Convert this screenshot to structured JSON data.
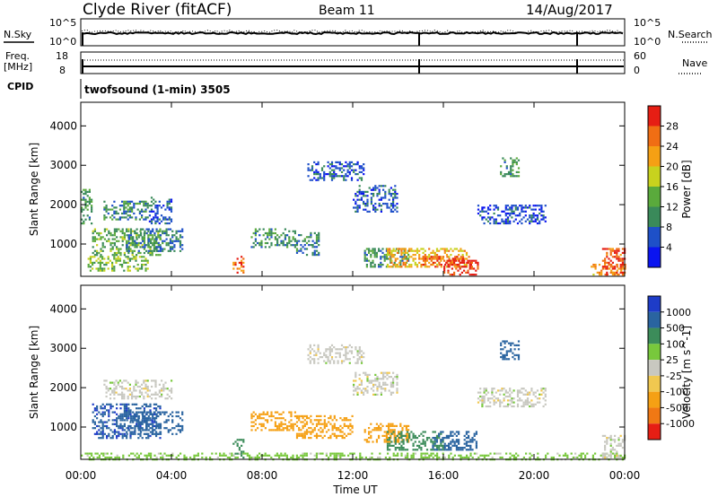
{
  "header": {
    "station": "Clyde River (fitACF)",
    "beam": "Beam 11",
    "date": "14/Aug/2017"
  },
  "top_panels": {
    "nsky_label": "N.Sky",
    "nsearch_label": "N.Search",
    "freq_label_1": "Freq.",
    "freq_label_2": "[MHz]",
    "nave_label": "Nave",
    "cpid_label": "CPID",
    "cpid_value": "twofsound (1-min) 3505",
    "noise_ticks_left": [
      "10^5",
      "10^0"
    ],
    "noise_ticks_right": [
      "10^5",
      "10^0"
    ],
    "freq_ticks_left": [
      "18",
      "8"
    ],
    "nave_ticks_right": [
      "60",
      "0"
    ]
  },
  "chart_data": [
    {
      "type": "heatmap",
      "panel": "power",
      "xlabel": "",
      "ylabel": "Slant Range [km]",
      "xlim": [
        0,
        24
      ],
      "ylim": [
        180,
        4600
      ],
      "x_ticks": [
        0,
        4,
        8,
        12,
        16,
        20,
        24
      ],
      "y_ticks": [
        1000,
        2000,
        3000,
        4000
      ],
      "colorbar": {
        "label": "Power [dB]",
        "ticks": [
          "4",
          "8",
          "12",
          "16",
          "20",
          "24",
          "28"
        ],
        "range": [
          0,
          30
        ],
        "colors": [
          "#0a14f0",
          "#1e50c8",
          "#3a8a5a",
          "#5aaa3c",
          "#c8d21e",
          "#f5a014",
          "#f06e14",
          "#e61e14"
        ]
      },
      "regions": [
        {
          "t": [
            0.0,
            0.5
          ],
          "r": [
            1500,
            2400
          ],
          "v": 10
        },
        {
          "t": [
            0.5,
            3.5
          ],
          "r": [
            700,
            1400
          ],
          "v": 12
        },
        {
          "t": [
            2.0,
            4.5
          ],
          "r": [
            800,
            1400
          ],
          "v": 8
        },
        {
          "t": [
            1.0,
            3.0
          ],
          "r": [
            1600,
            2100
          ],
          "v": 9
        },
        {
          "t": [
            3.0,
            4.0
          ],
          "r": [
            1500,
            2200
          ],
          "v": 6
        },
        {
          "t": [
            0.3,
            3.0
          ],
          "r": [
            300,
            700
          ],
          "v": 14
        },
        {
          "t": [
            6.7,
            7.2
          ],
          "r": [
            250,
            700
          ],
          "v": 24
        },
        {
          "t": [
            7.5,
            9.5
          ],
          "r": [
            900,
            1400
          ],
          "v": 9
        },
        {
          "t": [
            9.5,
            10.5
          ],
          "r": [
            700,
            1300
          ],
          "v": 8
        },
        {
          "t": [
            10.0,
            12.5
          ],
          "r": [
            2600,
            3100
          ],
          "v": 6
        },
        {
          "t": [
            12.0,
            14.0
          ],
          "r": [
            1800,
            2500
          ],
          "v": 6
        },
        {
          "t": [
            12.5,
            14.5
          ],
          "r": [
            400,
            900
          ],
          "v": 10
        },
        {
          "t": [
            13.5,
            17.0
          ],
          "r": [
            400,
            900
          ],
          "v": 20
        },
        {
          "t": [
            15.0,
            17.2
          ],
          "r": [
            400,
            700
          ],
          "v": 26
        },
        {
          "t": [
            16.0,
            17.5
          ],
          "r": [
            200,
            600
          ],
          "v": 28
        },
        {
          "t": [
            17.5,
            20.5
          ],
          "r": [
            1500,
            2000
          ],
          "v": 5
        },
        {
          "t": [
            18.5,
            19.3
          ],
          "r": [
            2700,
            3200
          ],
          "v": 10
        },
        {
          "t": [
            22.5,
            24.0
          ],
          "r": [
            200,
            500
          ],
          "v": 22
        },
        {
          "t": [
            23.0,
            24.0
          ],
          "r": [
            200,
            900
          ],
          "v": 26
        }
      ]
    },
    {
      "type": "heatmap",
      "panel": "velocity",
      "xlabel": "Time UT",
      "ylabel": "Slant Range [km]",
      "xlim": [
        0,
        24
      ],
      "ylim": [
        180,
        4600
      ],
      "x_ticks": [
        0,
        4,
        8,
        12,
        16,
        20,
        24
      ],
      "x_tick_labels": [
        "00:00",
        "04:00",
        "08:00",
        "12:00",
        "16:00",
        "20:00",
        "00:00"
      ],
      "y_ticks": [
        1000,
        2000,
        3000,
        4000
      ],
      "colorbar": {
        "label": "Velocity [m s^-1]",
        "ticks": [
          "1000",
          "500",
          "100",
          "25",
          "-25",
          "-100",
          "-500",
          "-1000"
        ],
        "colors": [
          "#1e3cc8",
          "#2a64a0",
          "#3c8c5a",
          "#78c83c",
          "#c8c8c0",
          "#f0c850",
          "#f5a014",
          "#f07814",
          "#e61e14"
        ]
      },
      "regions": [
        {
          "t": [
            0.5,
            3.5
          ],
          "r": [
            700,
            1600
          ],
          "v": 900
        },
        {
          "t": [
            2.0,
            4.5
          ],
          "r": [
            800,
            1400
          ],
          "v": 800
        },
        {
          "t": [
            1.0,
            4.0
          ],
          "r": [
            1700,
            2200
          ],
          "v": 0
        },
        {
          "t": [
            6.7,
            7.2
          ],
          "r": [
            200,
            700
          ],
          "v": 150
        },
        {
          "t": [
            7.5,
            9.5
          ],
          "r": [
            900,
            1400
          ],
          "v": -300
        },
        {
          "t": [
            9.5,
            12.0
          ],
          "r": [
            700,
            1300
          ],
          "v": -400
        },
        {
          "t": [
            10.0,
            12.5
          ],
          "r": [
            2600,
            3100
          ],
          "v": 0
        },
        {
          "t": [
            12.0,
            14.0
          ],
          "r": [
            1800,
            2400
          ],
          "v": 0
        },
        {
          "t": [
            12.5,
            14.5
          ],
          "r": [
            600,
            1100
          ],
          "v": -350
        },
        {
          "t": [
            13.5,
            16.0
          ],
          "r": [
            400,
            900
          ],
          "v": 300
        },
        {
          "t": [
            15.5,
            17.5
          ],
          "r": [
            400,
            900
          ],
          "v": 700
        },
        {
          "t": [
            17.5,
            20.5
          ],
          "r": [
            1500,
            2000
          ],
          "v": 0
        },
        {
          "t": [
            18.5,
            19.3
          ],
          "r": [
            2700,
            3200
          ],
          "v": 800
        },
        {
          "t": [
            0.0,
            24.0
          ],
          "r": [
            180,
            350
          ],
          "v": 50
        },
        {
          "t": [
            23.0,
            24.0
          ],
          "r": [
            200,
            800
          ],
          "v": 0
        }
      ]
    }
  ]
}
